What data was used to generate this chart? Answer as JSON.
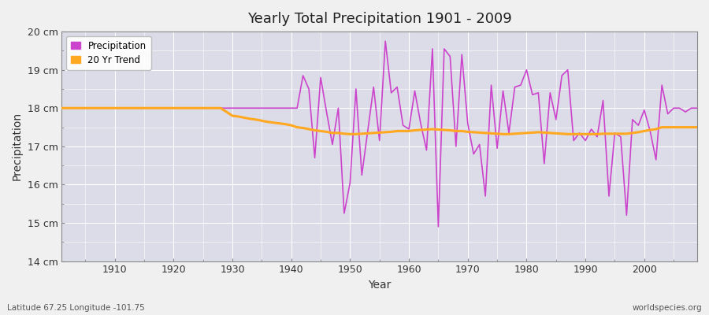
{
  "title": "Yearly Total Precipitation 1901 - 2009",
  "xlabel": "Year",
  "ylabel": "Precipitation",
  "subtitle_left": "Latitude 67.25 Longitude -101.75",
  "subtitle_right": "worldspecies.org",
  "ylim": [
    14,
    20
  ],
  "xlim": [
    1901,
    2009
  ],
  "ytick_labels": [
    "14 cm",
    "15 cm",
    "16 cm",
    "17 cm",
    "18 cm",
    "19 cm",
    "20 cm"
  ],
  "ytick_values": [
    14,
    15,
    16,
    17,
    18,
    19,
    20
  ],
  "xtick_values": [
    1910,
    1920,
    1930,
    1940,
    1950,
    1960,
    1970,
    1980,
    1990,
    2000
  ],
  "precip_color": "#cc44cc",
  "trend_color": "#ffa820",
  "bg_color": "#f0f0f0",
  "plot_bg_color": "#dcdce8",
  "grid_color": "#ffffff",
  "precipitation": {
    "1901": 18.0,
    "1902": 18.0,
    "1903": 18.0,
    "1904": 18.0,
    "1905": 18.0,
    "1906": 18.0,
    "1907": 18.0,
    "1908": 18.0,
    "1909": 18.0,
    "1910": 18.0,
    "1911": 18.0,
    "1912": 18.0,
    "1913": 18.0,
    "1914": 18.0,
    "1915": 18.0,
    "1916": 18.0,
    "1917": 18.0,
    "1918": 18.0,
    "1919": 18.0,
    "1920": 18.0,
    "1921": 18.0,
    "1922": 18.0,
    "1923": 18.0,
    "1924": 18.0,
    "1925": 18.0,
    "1926": 18.0,
    "1927": 18.0,
    "1928": 18.0,
    "1929": 18.0,
    "1930": 18.0,
    "1931": 18.0,
    "1932": 18.0,
    "1933": 18.0,
    "1934": 18.0,
    "1935": 18.0,
    "1936": 18.0,
    "1937": 18.0,
    "1938": 18.0,
    "1939": 18.0,
    "1940": 18.0,
    "1941": 18.0,
    "1942": 18.85,
    "1943": 18.5,
    "1944": 16.7,
    "1945": 18.8,
    "1946": 17.9,
    "1947": 17.05,
    "1948": 18.0,
    "1949": 15.25,
    "1950": 16.05,
    "1951": 18.5,
    "1952": 16.25,
    "1953": 17.4,
    "1954": 18.55,
    "1955": 17.15,
    "1956": 19.75,
    "1957": 18.4,
    "1958": 18.55,
    "1959": 17.55,
    "1960": 17.45,
    "1961": 18.45,
    "1962": 17.6,
    "1963": 16.9,
    "1964": 19.55,
    "1965": 14.9,
    "1966": 19.55,
    "1967": 19.35,
    "1968": 17.0,
    "1969": 19.4,
    "1970": 17.6,
    "1971": 16.8,
    "1972": 17.05,
    "1973": 15.7,
    "1974": 18.6,
    "1975": 16.95,
    "1976": 18.45,
    "1977": 17.35,
    "1978": 18.55,
    "1979": 18.6,
    "1980": 19.0,
    "1981": 18.35,
    "1982": 18.4,
    "1983": 16.55,
    "1984": 18.4,
    "1985": 17.7,
    "1986": 18.85,
    "1987": 19.0,
    "1988": 17.15,
    "1989": 17.35,
    "1990": 17.15,
    "1991": 17.45,
    "1992": 17.25,
    "1993": 18.2,
    "1994": 15.7,
    "1995": 17.35,
    "1996": 17.25,
    "1997": 15.2,
    "1998": 17.7,
    "1999": 17.55,
    "2000": 17.95,
    "2001": 17.4,
    "2002": 16.65,
    "2003": 18.6,
    "2004": 17.85,
    "2005": 18.0,
    "2006": 18.0,
    "2007": 17.9,
    "2008": 18.0,
    "2009": 18.0
  },
  "trend": {
    "1901": 18.0,
    "1902": 18.0,
    "1903": 18.0,
    "1904": 18.0,
    "1905": 18.0,
    "1906": 18.0,
    "1907": 18.0,
    "1908": 18.0,
    "1909": 18.0,
    "1910": 18.0,
    "1911": 18.0,
    "1912": 18.0,
    "1913": 18.0,
    "1914": 18.0,
    "1915": 18.0,
    "1916": 18.0,
    "1917": 18.0,
    "1918": 18.0,
    "1919": 18.0,
    "1920": 18.0,
    "1921": 18.0,
    "1922": 18.0,
    "1923": 18.0,
    "1924": 18.0,
    "1925": 18.0,
    "1926": 18.0,
    "1927": 18.0,
    "1928": 18.0,
    "1929": 17.9,
    "1930": 17.8,
    "1931": 17.78,
    "1932": 17.75,
    "1933": 17.72,
    "1934": 17.7,
    "1935": 17.67,
    "1936": 17.64,
    "1937": 17.62,
    "1938": 17.6,
    "1939": 17.58,
    "1940": 17.55,
    "1941": 17.5,
    "1942": 17.48,
    "1943": 17.45,
    "1944": 17.42,
    "1945": 17.4,
    "1946": 17.38,
    "1947": 17.35,
    "1948": 17.35,
    "1949": 17.33,
    "1950": 17.32,
    "1951": 17.32,
    "1952": 17.33,
    "1953": 17.34,
    "1954": 17.35,
    "1955": 17.36,
    "1956": 17.37,
    "1957": 17.38,
    "1958": 17.4,
    "1959": 17.4,
    "1960": 17.4,
    "1961": 17.42,
    "1962": 17.43,
    "1963": 17.44,
    "1964": 17.45,
    "1965": 17.44,
    "1966": 17.43,
    "1967": 17.42,
    "1968": 17.4,
    "1969": 17.4,
    "1970": 17.38,
    "1971": 17.37,
    "1972": 17.36,
    "1973": 17.35,
    "1974": 17.34,
    "1975": 17.33,
    "1976": 17.32,
    "1977": 17.32,
    "1978": 17.33,
    "1979": 17.34,
    "1980": 17.35,
    "1981": 17.36,
    "1982": 17.37,
    "1983": 17.36,
    "1984": 17.35,
    "1985": 17.34,
    "1986": 17.33,
    "1987": 17.32,
    "1988": 17.32,
    "1989": 17.32,
    "1990": 17.32,
    "1991": 17.32,
    "1992": 17.32,
    "1993": 17.33,
    "1994": 17.33,
    "1995": 17.33,
    "1996": 17.33,
    "1997": 17.33,
    "1998": 17.35,
    "1999": 17.37,
    "2000": 17.4,
    "2001": 17.43,
    "2002": 17.45,
    "2003": 17.5,
    "2004": 17.5,
    "2005": 17.5,
    "2006": 17.5,
    "2007": 17.5,
    "2008": 17.5,
    "2009": 17.5
  }
}
